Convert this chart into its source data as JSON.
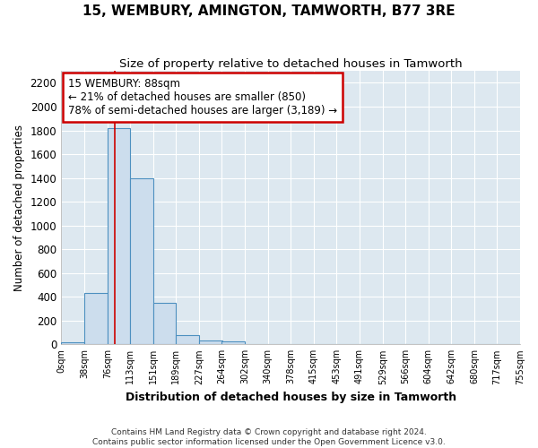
{
  "title": "15, WEMBURY, AMINGTON, TAMWORTH, B77 3RE",
  "subtitle": "Size of property relative to detached houses in Tamworth",
  "xlabel": "Distribution of detached houses by size in Tamworth",
  "ylabel": "Number of detached properties",
  "bin_edges": [
    0,
    38,
    76,
    113,
    151,
    189,
    227,
    264,
    302,
    340,
    378,
    415,
    453,
    491,
    529,
    566,
    604,
    642,
    680,
    717,
    755
  ],
  "bar_heights": [
    20,
    430,
    1820,
    1400,
    350,
    80,
    35,
    25,
    0,
    0,
    0,
    0,
    0,
    0,
    0,
    0,
    0,
    0,
    0,
    0
  ],
  "bar_color": "#ccdded",
  "bar_edgecolor": "#4d90c0",
  "bar_linewidth": 0.8,
  "red_line_x": 88,
  "ylim": [
    0,
    2300
  ],
  "yticks": [
    0,
    200,
    400,
    600,
    800,
    1000,
    1200,
    1400,
    1600,
    1800,
    2000,
    2200
  ],
  "annotation_line1": "15 WEMBURY: 88sqm",
  "annotation_line2": "← 21% of detached houses are smaller (850)",
  "annotation_line3": "78% of semi-detached houses are larger (3,189) →",
  "annotation_box_color": "#ffffff",
  "annotation_box_edgecolor": "#cc0000",
  "footer_line1": "Contains HM Land Registry data © Crown copyright and database right 2024.",
  "footer_line2": "Contains public sector information licensed under the Open Government Licence v3.0.",
  "plot_bg_color": "#dde8f0",
  "fig_bg_color": "#ffffff",
  "grid_color": "#ffffff"
}
